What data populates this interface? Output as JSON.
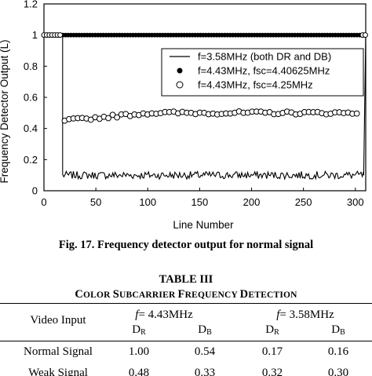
{
  "figure": {
    "caption": "Fig. 17. Frequency detector output for normal signal"
  },
  "chart_data": {
    "type": "line",
    "xlabel": "Line Number",
    "ylabel": "Frequency Detector Output (L)",
    "xlim": [
      0,
      310
    ],
    "ylim": [
      0,
      1.2
    ],
    "x_ticks": [
      0,
      50,
      100,
      150,
      200,
      250,
      300
    ],
    "y_ticks": [
      0,
      0.2,
      0.4,
      0.6,
      0.8,
      1,
      1.2
    ],
    "y_tick_labels": [
      "0",
      "0.2",
      "0.4",
      "0.6",
      "0.8",
      "1",
      "1.2"
    ],
    "grid": false,
    "legend_position": "right",
    "series": [
      {
        "name": "f=3.58MHz (both DR and DB)",
        "style": "line",
        "color": "#000000",
        "segments": [
          {
            "x": [
              0,
              18
            ],
            "y": [
              1.0,
              1.0
            ]
          },
          {
            "x": [
              18,
              308
            ],
            "y_mean": 0.1,
            "y_jitter": 0.025
          },
          {
            "x": [
              308,
              310
            ],
            "y": [
              0.1,
              1.0
            ]
          }
        ]
      },
      {
        "name": "f=4.43MHz, fsc=4.40625MHz",
        "style": "marker",
        "marker": "filled-circle",
        "color": "#000000",
        "x_range": [
          0,
          310
        ],
        "y": 1.0
      },
      {
        "name": "f=4.43MHz, fsc=4.25MHz",
        "style": "marker",
        "marker": "open-circle",
        "color": "#000000",
        "segments": [
          {
            "x_range": [
              0,
              18
            ],
            "y": 1.0
          },
          {
            "x_range": [
              20,
              305
            ],
            "y_start": 0.45,
            "y_end": 0.5
          },
          {
            "x_range": [
              307,
              310
            ],
            "y": 1.0
          }
        ]
      }
    ]
  },
  "table": {
    "label": "TABLE III",
    "title_parts": [
      "C",
      "OLOR ",
      "S",
      "UBCARRIER ",
      "F",
      "REQUENCY ",
      "D",
      "ETECTION"
    ],
    "header": {
      "video_input": "Video Input",
      "group1_f": "f",
      "group1_value": "= 4.43MHz",
      "group2_f": "f",
      "group2_value": "= 3.58MHz",
      "sub_cols": [
        {
          "base": "D",
          "sub": "R"
        },
        {
          "base": "D",
          "sub": "B"
        },
        {
          "base": "D",
          "sub": "R"
        },
        {
          "base": "D",
          "sub": "B"
        }
      ]
    },
    "rows": [
      {
        "label": "Normal Signal",
        "values": [
          "1.00",
          "0.54",
          "0.17",
          "0.16"
        ]
      },
      {
        "label": "Weak Signal",
        "values": [
          "0.48",
          "0.33",
          "0.32",
          "0.30"
        ]
      }
    ]
  }
}
